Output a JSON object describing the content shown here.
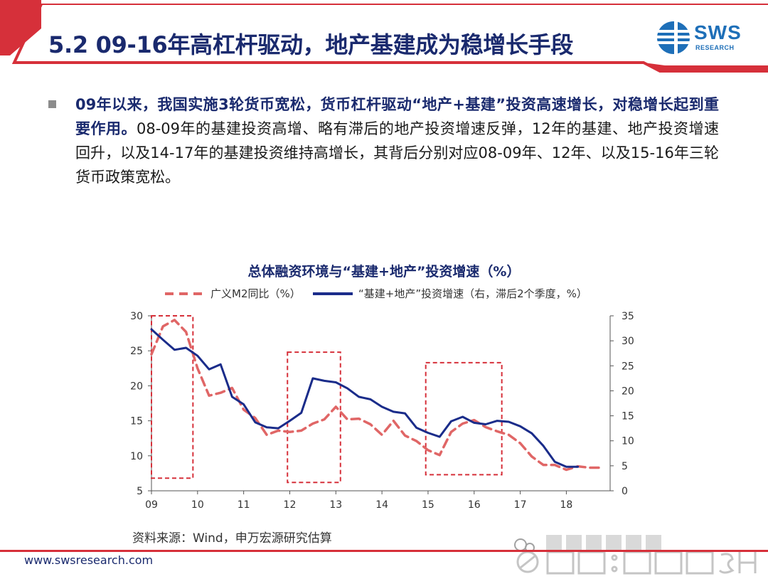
{
  "header": {
    "title": "5.2 09-16年高杠杆驱动，地产基建成为稳增长手段",
    "logo_text": "SWS",
    "logo_sub": "RESEARCH",
    "accent_color": "#d6303a"
  },
  "bullet": {
    "bold_text": "09年以来，我国实施3轮货币宽松，货币杠杆驱动“地产+基建”投资高速增长，对稳增长起到重要作用。",
    "normal_text": "08-09年的基建投资高增、略有滞后的地产投资增速反弹，12年的基建、地产投资增速回升，以及14-17年的基建投资维持高增长，其背后分别对应08-09年、12年、以及15-16年三轮货币政策宽松。"
  },
  "chart_data": {
    "type": "line",
    "title": "总体融资环境与“基建+地产”投资增速（%）",
    "xlabel": "",
    "ylabel_left": "",
    "ylabel_right": "",
    "x_tick_labels": [
      "09",
      "10",
      "11",
      "12",
      "13",
      "14",
      "15",
      "16",
      "17",
      "18"
    ],
    "x_range": [
      2009.0,
      2018.95
    ],
    "ylim_left": [
      5,
      30
    ],
    "yticks_left": [
      5,
      10,
      15,
      20,
      25,
      30
    ],
    "ylim_right": [
      0,
      35
    ],
    "yticks_right": [
      0,
      5,
      10,
      15,
      20,
      25,
      30,
      35
    ],
    "series": [
      {
        "name": "广义M2同比（%）",
        "axis": "left",
        "style": "dashed",
        "color": "#e06666",
        "x": [
          2009.0,
          2009.25,
          2009.5,
          2009.75,
          2010.0,
          2010.25,
          2010.5,
          2010.75,
          2011.0,
          2011.25,
          2011.5,
          2011.75,
          2012.0,
          2012.25,
          2012.5,
          2012.75,
          2013.0,
          2013.25,
          2013.5,
          2013.75,
          2014.0,
          2014.25,
          2014.5,
          2014.75,
          2015.0,
          2015.25,
          2015.5,
          2015.75,
          2016.0,
          2016.25,
          2016.5,
          2016.75,
          2017.0,
          2017.25,
          2017.5,
          2017.75,
          2018.0,
          2018.25,
          2018.5,
          2018.75
        ],
        "values": [
          24.5,
          28.5,
          29.4,
          27.7,
          22.5,
          18.6,
          19.0,
          19.7,
          16.6,
          15.4,
          13.0,
          13.6,
          13.4,
          13.6,
          14.6,
          15.2,
          17.0,
          15.2,
          15.3,
          14.5,
          13.0,
          15.0,
          12.9,
          12.1,
          10.8,
          10.1,
          13.4,
          14.6,
          15.1,
          14.1,
          13.5,
          13.0,
          11.8,
          9.9,
          8.7,
          8.7,
          8.0,
          8.5,
          8.3,
          8.3
        ]
      },
      {
        "name": "“基建+地产”投资增速（右，滞后2个季度，%）",
        "axis": "right",
        "style": "solid",
        "color": "#1a2c8a",
        "x": [
          2009.0,
          2009.25,
          2009.5,
          2009.75,
          2010.0,
          2010.25,
          2010.5,
          2010.75,
          2011.0,
          2011.25,
          2011.5,
          2011.75,
          2012.0,
          2012.25,
          2012.5,
          2012.75,
          2013.0,
          2013.25,
          2013.5,
          2013.75,
          2014.0,
          2014.25,
          2014.5,
          2014.75,
          2015.0,
          2015.25,
          2015.5,
          2015.75,
          2016.0,
          2016.25,
          2016.5,
          2016.75,
          2017.0,
          2017.25,
          2017.5,
          2017.75,
          2018.0,
          2018.25
        ],
        "values": [
          32.3,
          30.2,
          28.2,
          28.6,
          27.0,
          24.3,
          25.3,
          18.8,
          17.3,
          13.7,
          12.7,
          12.5,
          14.0,
          15.6,
          22.5,
          22.0,
          21.7,
          20.5,
          18.8,
          18.3,
          16.8,
          15.8,
          15.5,
          12.6,
          11.6,
          10.8,
          13.9,
          14.8,
          13.6,
          13.3,
          14.0,
          13.8,
          12.9,
          11.5,
          9.0,
          5.8,
          4.8,
          4.8
        ]
      }
    ],
    "highlight_boxes": [
      {
        "x0": 2009.0,
        "x1": 2009.9,
        "y0_left": 6.8,
        "y1_left": 30.0
      },
      {
        "x0": 2011.95,
        "x1": 2013.1,
        "y0_left": 6.2,
        "y1_left": 24.8
      },
      {
        "x0": 2014.95,
        "x1": 2016.6,
        "y0_left": 7.3,
        "y1_left": 23.3
      }
    ],
    "legend_position": "top",
    "grid": false
  },
  "source": {
    "text": "资料来源：Wind，申万宏源研究估算"
  },
  "footer": {
    "url": "www.swsresearch.com"
  },
  "watermark": {
    "text": "雪球：李慧勇SH",
    "sub_text": "申万宏源宏观"
  }
}
